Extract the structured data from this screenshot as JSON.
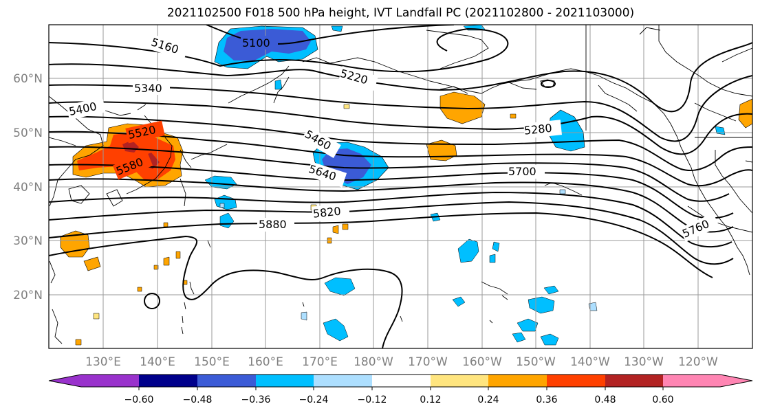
{
  "title": "2021102500 F018 500 hPa height, IVT Landfall PC (2021102800 - 2021103000)",
  "lat_labels": [
    "60°N",
    "50°N",
    "40°N",
    "30°N",
    "20°N"
  ],
  "lon_labels": [
    "130°E",
    "140°E",
    "150°E",
    "160°E",
    "170°E",
    "180°W",
    "170°W",
    "160°W",
    "150°W",
    "140°W",
    "130°W",
    "120°W"
  ],
  "contour_labels": [
    "5100",
    "5160",
    "5220",
    "5340",
    "5400",
    "5520",
    "5580",
    "5460",
    "5640",
    "5280",
    "5700",
    "5820",
    "5880",
    "5760"
  ],
  "colorbar": {
    "ticks": [
      "−0.60",
      "−0.48",
      "−0.36",
      "−0.24",
      "−0.12",
      "0.12",
      "0.24",
      "0.36",
      "0.48",
      "0.60"
    ],
    "colors": [
      "#9932CC",
      "#00008B",
      "#3B5BD6",
      "#00BFFF",
      "#ADDFFF",
      "#FFFFFF",
      "#FFE57F",
      "#FFA500",
      "#FF4000",
      "#B22222",
      "#FF85B3"
    ]
  }
}
